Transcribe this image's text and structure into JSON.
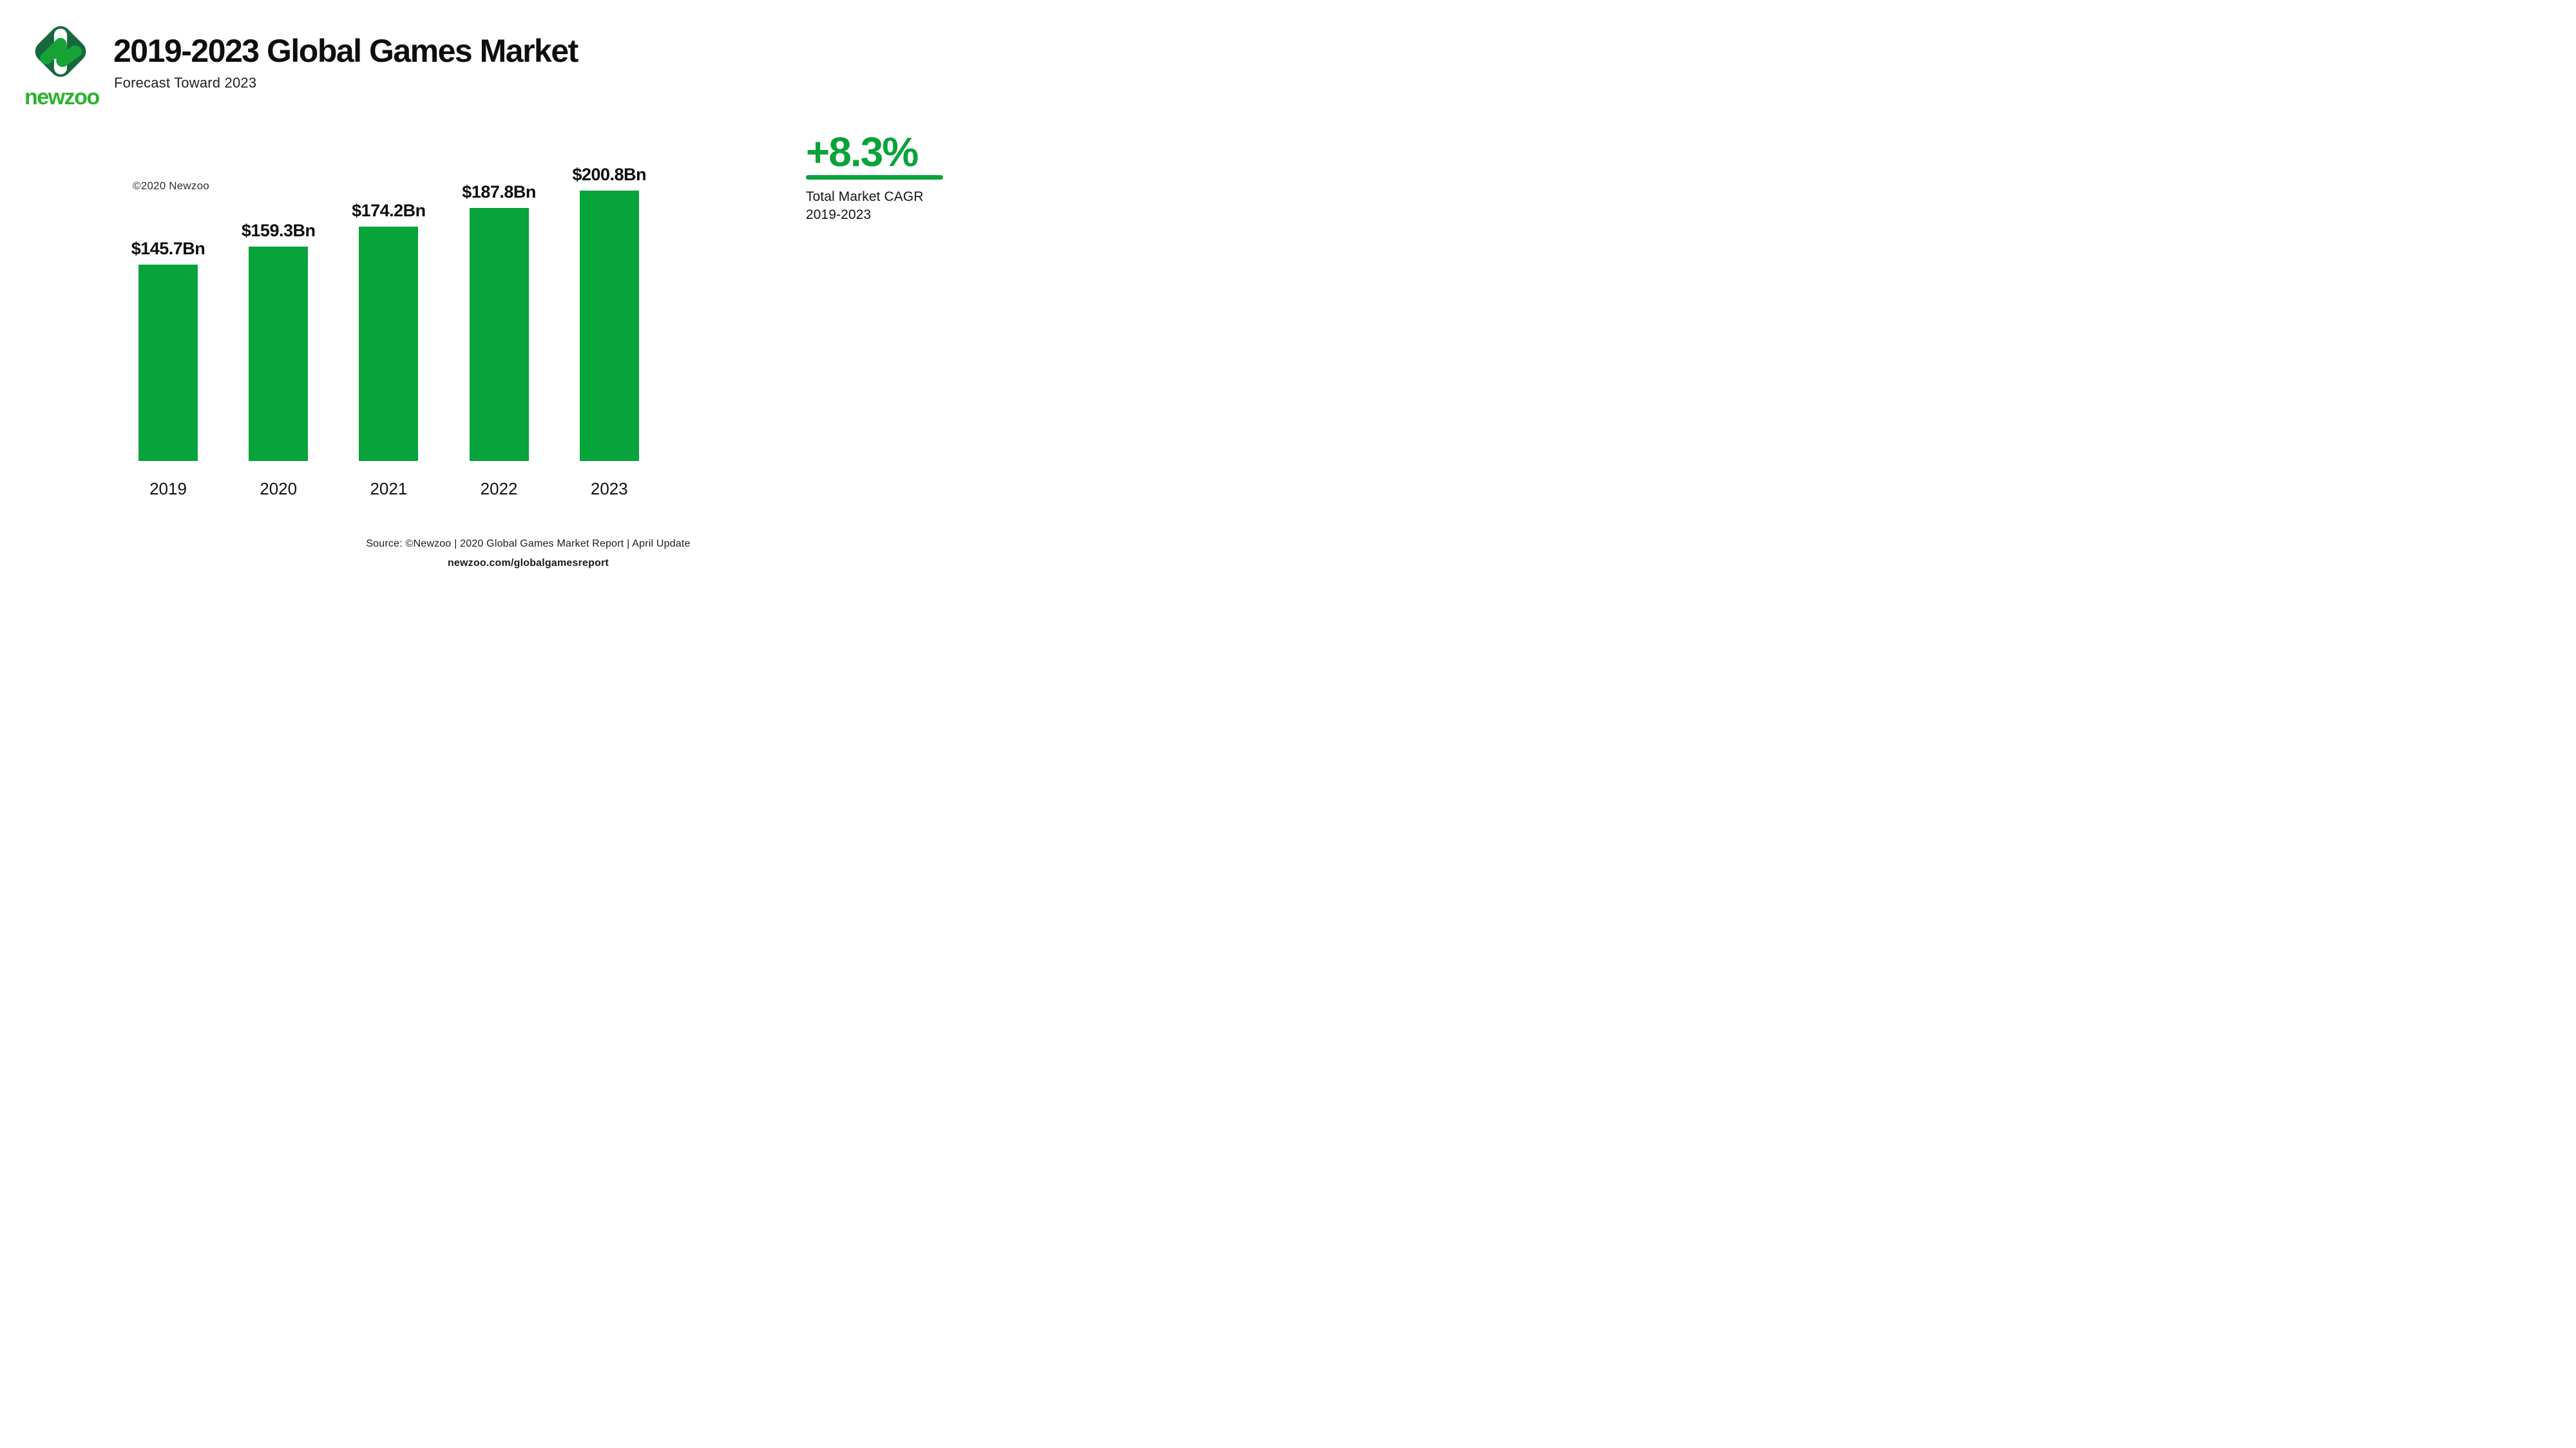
{
  "header": {
    "logo": {
      "wordmark": "newzoo"
    },
    "title": "2019-2023 Global Games Market",
    "subtitle": "Forecast Toward 2023"
  },
  "chart": {
    "copyright": "©2020 Newzoo"
  },
  "chart_data": {
    "type": "bar",
    "categories": [
      "2019",
      "2020",
      "2021",
      "2022",
      "2023"
    ],
    "values": [
      145.7,
      159.3,
      174.2,
      187.8,
      200.8
    ],
    "value_labels": [
      "$145.7Bn",
      "$159.3Bn",
      "$174.2Bn",
      "$187.8Bn",
      "$200.8Bn"
    ],
    "unit": "USD billions",
    "title": "2019-2023 Global Games Market",
    "subtitle": "Forecast Toward 2023",
    "xlabel": "",
    "ylabel": "",
    "ylim": [
      0,
      200.8
    ],
    "grid": false,
    "legend": "none",
    "bar_color": "#07a33b"
  },
  "cagr": {
    "value": "+8.3%",
    "label_line1": "Total Market CAGR",
    "label_line2": "2019-2023"
  },
  "footer": {
    "source": "Source: ©Newzoo | 2020 Global Games Market Report | April Update",
    "url": "newzoo.com/globalgamesreport"
  },
  "colors": {
    "accent_green": "#07a33b",
    "cagr_green": "#09a33a",
    "wordmark_green": "#2cb22c",
    "logo_dark_green": "#17693d",
    "logo_bright_green": "#17a336",
    "text_black": "#0e0e0e",
    "background": "#ffffff"
  },
  "icons": {
    "logo": "newzoo-diamond-logo"
  }
}
